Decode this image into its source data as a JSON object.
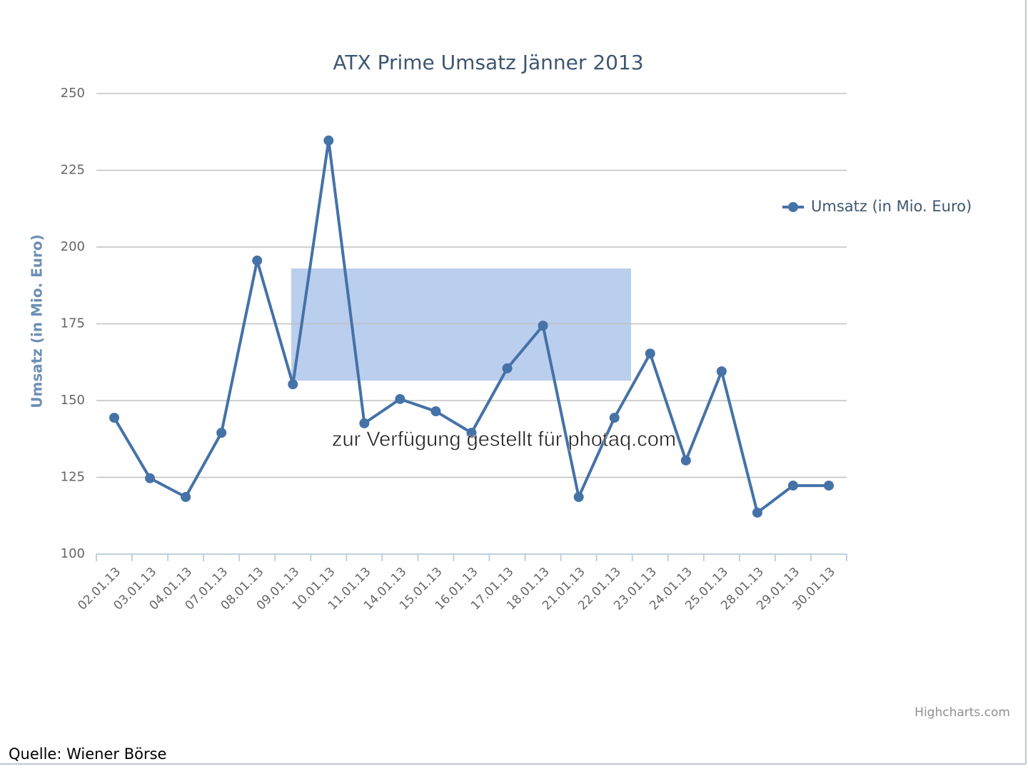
{
  "chart_data": {
    "type": "line",
    "title": "ATX Prime Umsatz Jänner 2013",
    "y_axis_label": "Umsatz (in Mio. Euro)",
    "categories": [
      "02.01.13",
      "03.01.13",
      "04.01.13",
      "07.01.13",
      "08.01.13",
      "09.01.13",
      "10.01.13",
      "11.01.13",
      "14.01.13",
      "15.01.13",
      "16.01.13",
      "17.01.13",
      "18.01.13",
      "21.01.13",
      "22.01.13",
      "23.01.13",
      "24.01.13",
      "25.01.13",
      "28.01.13",
      "29.01.13",
      "30.01.13"
    ],
    "series": [
      {
        "name": "Umsatz (in Mio. Euro)",
        "color": "#4572a7",
        "values": [
          144.4,
          124.7,
          118.6,
          139.5,
          195.6,
          155.3,
          234.7,
          142.6,
          150.5,
          146.5,
          139.5,
          160.5,
          174.4,
          118.6,
          144.4,
          165.3,
          130.5,
          159.5,
          113.5,
          122.3,
          122.3
        ]
      }
    ],
    "ylim": [
      100,
      250
    ],
    "yticks": [
      100,
      125,
      150,
      175,
      200,
      225,
      250
    ],
    "grid": true,
    "legend": "right",
    "watermark": "zur Verfügung gestellt für photaq.com",
    "credits": "Highcharts.com",
    "source": "Quelle: Wiener Börse"
  }
}
